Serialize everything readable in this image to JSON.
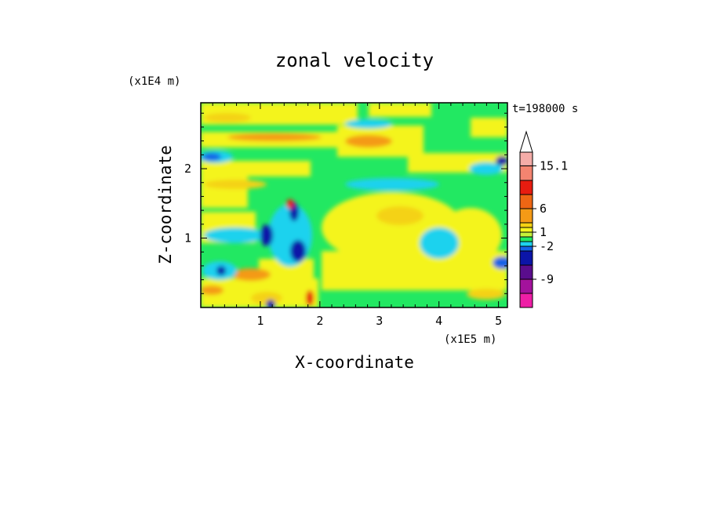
{
  "chart_data": {
    "type": "heatmap",
    "title": "zonal velocity",
    "xlabel": "X-coordinate",
    "ylabel": "Z-coordinate",
    "x_scale_label": "(x1E5 m)",
    "y_scale_label": "(x1E4 m)",
    "time_label": "t=198000 s",
    "xlim": [
      0,
      5.15
    ],
    "ylim": [
      0,
      2.95
    ],
    "x_ticks": [
      1,
      2,
      3,
      4,
      5
    ],
    "y_ticks": [
      1,
      2
    ],
    "colorbar": {
      "tick_labels": [
        {
          "label": "15.1",
          "level": 15.1
        },
        {
          "label": "6",
          "level": 6
        },
        {
          "label": "1",
          "level": 1
        },
        {
          "label": "-2",
          "level": -2
        },
        {
          "label": "-9",
          "level": -9
        }
      ],
      "bins": [
        {
          "color": "#ee1ea6"
        },
        {
          "color": "#a3129c"
        },
        {
          "color": "#5a0d8d"
        },
        {
          "color": "#0b15a8"
        },
        {
          "color": "#1462e6"
        },
        {
          "color": "#1ed2ee"
        },
        {
          "color": "#22e862"
        },
        {
          "color": "#c4f23a"
        },
        {
          "color": "#f4f41e"
        },
        {
          "color": "#f4d213"
        },
        {
          "color": "#f49a16"
        },
        {
          "color": "#ee6614"
        },
        {
          "color": "#e71c10"
        },
        {
          "color": "#f48470"
        },
        {
          "color": "#f4aca8"
        }
      ],
      "extend_max": true
    }
  }
}
